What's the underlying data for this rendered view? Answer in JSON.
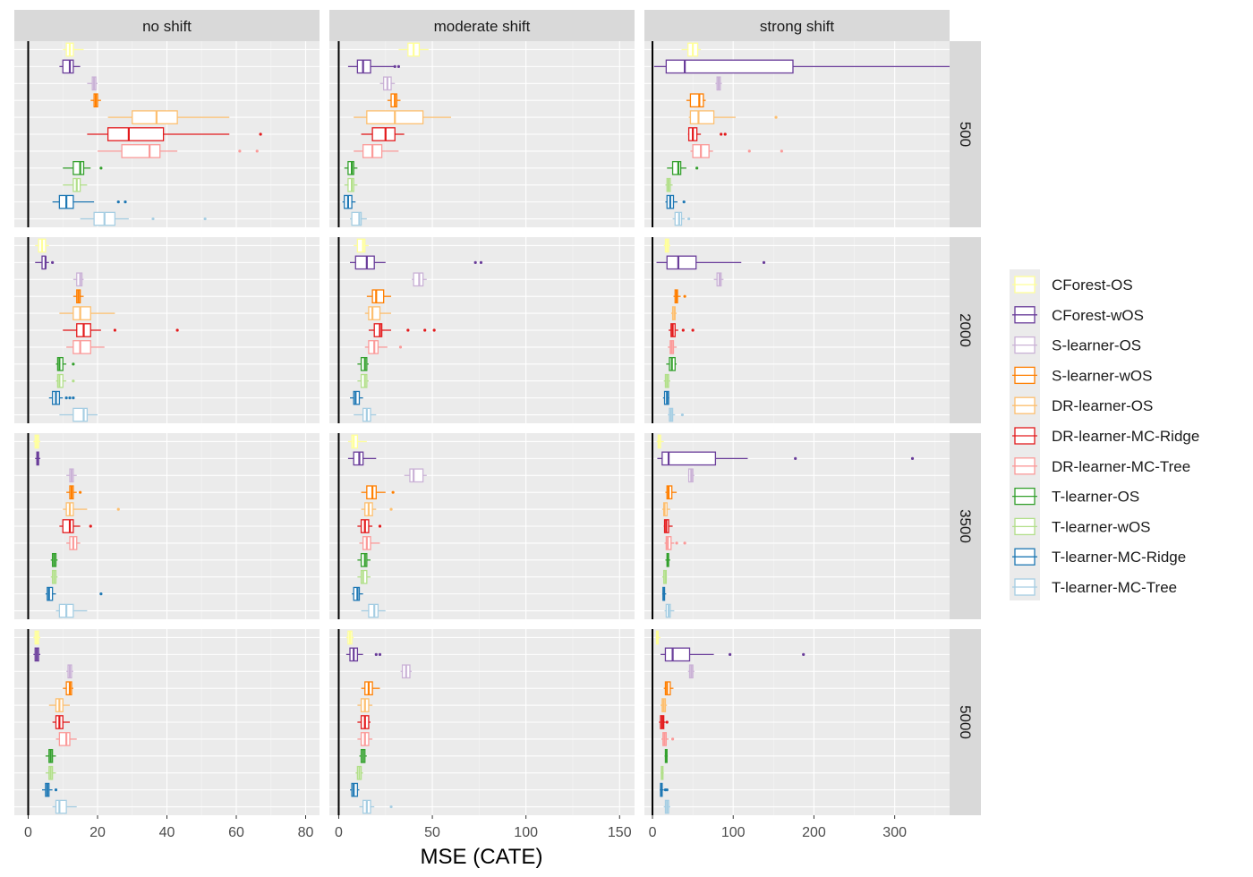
{
  "chart_data": {
    "type": "boxplot",
    "xlabel": "MSE (CATE)",
    "col_facets": [
      "no shift",
      "moderate shift",
      "strong shift"
    ],
    "row_facets": [
      "500",
      "2000",
      "3500",
      "5000"
    ],
    "x_ticks": [
      [
        0,
        20,
        40,
        60,
        80
      ],
      [
        0,
        50,
        100,
        150
      ],
      [
        0,
        100,
        200,
        300
      ]
    ],
    "xlim": [
      [
        -4,
        84
      ],
      [
        -5,
        158
      ],
      [
        -10,
        368
      ]
    ],
    "legend_position": "right",
    "methods": [
      {
        "name": "CForest-OS",
        "color": "#FFFF99"
      },
      {
        "name": "CForest-wOS",
        "color": "#6A3D9A"
      },
      {
        "name": "S-learner-OS",
        "color": "#CAB2D6"
      },
      {
        "name": "S-learner-wOS",
        "color": "#FF7F00"
      },
      {
        "name": "DR-learner-OS",
        "color": "#FDBF6F"
      },
      {
        "name": "DR-learner-MC-Ridge",
        "color": "#E31A1C"
      },
      {
        "name": "DR-learner-MC-Tree",
        "color": "#FB9A99"
      },
      {
        "name": "T-learner-OS",
        "color": "#33A02C"
      },
      {
        "name": "T-learner-wOS",
        "color": "#B2DF8A"
      },
      {
        "name": "T-learner-MC-Ridge",
        "color": "#1F78B4"
      },
      {
        "name": "T-learner-MC-Tree",
        "color": "#A6CEE3"
      }
    ],
    "boxes": [
      [
        [
          [
            10,
            11,
            12,
            13,
            16,
            []
          ],
          [
            9,
            10,
            12,
            13,
            15,
            []
          ],
          [
            17,
            18.5,
            19,
            19.5,
            20,
            []
          ],
          [
            18,
            19,
            19.5,
            20,
            21,
            []
          ],
          [
            23,
            30,
            37,
            43,
            58,
            []
          ],
          [
            17,
            23,
            29,
            39,
            58,
            [
              67
            ]
          ],
          [
            20,
            27,
            35,
            38,
            43,
            [
              61,
              66
            ]
          ],
          [
            10,
            13,
            15,
            16,
            18,
            [
              21
            ]
          ],
          [
            10,
            13,
            14,
            15,
            17,
            []
          ],
          [
            7,
            9,
            11,
            13,
            19,
            [
              26,
              28
            ]
          ],
          [
            15,
            19,
            22,
            25,
            29,
            [
              36,
              51
            ]
          ]
        ],
        [
          [
            32,
            37,
            40,
            43,
            48,
            []
          ],
          [
            5,
            10,
            13,
            17,
            30,
            [
              30,
              32
            ]
          ],
          [
            22,
            24,
            26,
            28,
            30,
            []
          ],
          [
            26,
            28,
            30,
            31,
            33,
            []
          ],
          [
            8,
            15,
            30,
            45,
            60,
            []
          ],
          [
            12,
            18,
            25,
            30,
            35,
            []
          ],
          [
            8,
            13,
            18,
            23,
            32,
            []
          ],
          [
            3,
            5,
            7,
            8,
            10,
            []
          ],
          [
            3,
            5,
            7,
            8,
            10,
            []
          ],
          [
            2,
            3,
            5,
            7,
            9,
            []
          ],
          [
            6,
            7,
            11,
            12,
            15,
            []
          ]
        ],
        [
          [
            36,
            44,
            50,
            56,
            60,
            []
          ],
          [
            2,
            17,
            40,
            174,
            368,
            []
          ],
          [
            78,
            80,
            82,
            84,
            86,
            []
          ],
          [
            42,
            47,
            58,
            63,
            66,
            []
          ],
          [
            45,
            47,
            57,
            76,
            103,
            [
              153
            ]
          ],
          [
            44,
            45,
            50,
            55,
            60,
            [
              85,
              90
            ]
          ],
          [
            47,
            50,
            60,
            70,
            75,
            [
              120,
              160
            ]
          ],
          [
            18,
            25,
            32,
            35,
            42,
            [
              55
            ]
          ],
          [
            16,
            18,
            20,
            22,
            25,
            []
          ],
          [
            16,
            18,
            22,
            26,
            31,
            [
              39
            ]
          ],
          [
            25,
            28,
            33,
            36,
            40,
            [
              45
            ]
          ]
        ]
      ],
      [
        [
          [
            2,
            3,
            4,
            5,
            6,
            []
          ],
          [
            2,
            4,
            5,
            5,
            6,
            [
              7
            ]
          ],
          [
            13,
            14,
            15,
            15.5,
            16,
            []
          ],
          [
            13,
            14,
            14.5,
            15,
            16,
            []
          ],
          [
            9,
            13,
            15,
            18,
            25,
            []
          ],
          [
            10,
            14,
            16,
            18,
            21,
            [
              25,
              43
            ]
          ],
          [
            11,
            13,
            15,
            18,
            22,
            []
          ],
          [
            8,
            8.5,
            9,
            10,
            11,
            [
              13
            ]
          ],
          [
            8,
            8.5,
            9,
            10,
            11,
            [
              13
            ]
          ],
          [
            6,
            7,
            8,
            9,
            10,
            [
              11,
              12,
              13
            ]
          ],
          [
            9,
            13,
            16,
            17,
            20,
            []
          ]
        ],
        [
          [
            8,
            10,
            13,
            14,
            16,
            []
          ],
          [
            6,
            9,
            15,
            19,
            25,
            [
              73,
              76
            ]
          ],
          [
            39,
            40,
            43,
            45,
            47,
            []
          ],
          [
            15,
            18,
            20,
            24,
            28,
            []
          ],
          [
            14,
            16,
            18,
            22,
            28,
            []
          ],
          [
            16,
            19,
            22,
            23,
            28,
            [
              37,
              46,
              51
            ]
          ],
          [
            14,
            16,
            19,
            21,
            26,
            [
              33
            ]
          ],
          [
            10,
            12,
            14,
            15,
            16,
            []
          ],
          [
            10,
            12,
            14,
            15,
            16,
            []
          ],
          [
            6,
            8,
            9,
            11,
            13,
            []
          ],
          [
            8,
            13,
            15,
            17,
            20,
            []
          ]
        ],
        [
          [
            14,
            16,
            18,
            20,
            22,
            []
          ],
          [
            5,
            18,
            32,
            54,
            110,
            [
              138
            ]
          ],
          [
            76,
            80,
            83,
            85,
            88,
            []
          ],
          [
            26,
            28,
            30,
            31,
            35,
            [
              40
            ]
          ],
          [
            23,
            25,
            27,
            28,
            30,
            []
          ],
          [
            20,
            23,
            25,
            28,
            32,
            [
              38,
              50
            ]
          ],
          [
            19,
            22,
            24,
            26,
            30,
            []
          ],
          [
            17,
            21,
            24,
            28,
            30,
            []
          ],
          [
            14,
            16,
            18,
            20,
            22,
            []
          ],
          [
            13,
            15,
            18,
            20,
            21,
            []
          ],
          [
            19,
            21,
            23,
            25,
            28,
            [
              37
            ]
          ]
        ]
      ],
      [
        [
          [
            1.5,
            2,
            2.5,
            3,
            3.5,
            []
          ],
          [
            2,
            2.5,
            2.7,
            3,
            3.5,
            []
          ],
          [
            11,
            12,
            12.5,
            13,
            14,
            []
          ],
          [
            11,
            12,
            12.5,
            13,
            14,
            [
              15
            ]
          ],
          [
            10,
            11,
            12,
            13,
            17,
            [
              26
            ]
          ],
          [
            9,
            10,
            12,
            13,
            15,
            [
              18
            ]
          ],
          [
            11,
            12,
            13,
            14,
            15,
            []
          ],
          [
            6.5,
            7,
            7.5,
            8,
            8.5,
            []
          ],
          [
            6.5,
            7,
            7.5,
            8,
            8.5,
            []
          ],
          [
            5,
            5.5,
            6,
            7,
            8,
            [
              21
            ]
          ],
          [
            8,
            9,
            11,
            13,
            17,
            []
          ]
        ],
        [
          [
            5,
            7,
            8,
            10,
            15,
            []
          ],
          [
            5,
            8,
            11,
            13,
            20,
            []
          ],
          [
            35,
            38,
            40,
            45,
            47,
            []
          ],
          [
            12,
            15,
            18,
            20,
            25,
            [
              29
            ]
          ],
          [
            12,
            14,
            16,
            18,
            20,
            [
              28
            ]
          ],
          [
            10,
            12,
            14,
            16,
            18,
            [
              22
            ]
          ],
          [
            11,
            13,
            15,
            17,
            22,
            []
          ],
          [
            10,
            12,
            14,
            15,
            17,
            []
          ],
          [
            10,
            12,
            13,
            15,
            17,
            []
          ],
          [
            7,
            8,
            10,
            11,
            13,
            []
          ],
          [
            12,
            16,
            19,
            21,
            25,
            []
          ]
        ],
        [
          [
            5,
            7,
            8,
            10,
            14,
            []
          ],
          [
            6,
            12,
            20,
            78,
            118,
            [
              177,
              322
            ]
          ],
          [
            44,
            45,
            48,
            50,
            52,
            []
          ],
          [
            16,
            18,
            20,
            24,
            30,
            []
          ],
          [
            12,
            14,
            15,
            18,
            22,
            []
          ],
          [
            14,
            15,
            17,
            20,
            25,
            []
          ],
          [
            15,
            17,
            19,
            23,
            27,
            [
              30,
              40
            ]
          ],
          [
            16,
            18,
            19,
            20,
            22,
            []
          ],
          [
            12,
            14,
            16,
            17,
            18,
            []
          ],
          [
            12,
            13,
            14,
            15,
            17,
            []
          ],
          [
            15,
            17,
            20,
            22,
            27,
            []
          ]
        ]
      ],
      [
        [
          [
            1.5,
            2,
            2.5,
            3,
            3.5,
            []
          ],
          [
            1.5,
            2,
            2.5,
            3,
            3.5,
            []
          ],
          [
            11,
            11.5,
            12,
            12.5,
            13,
            []
          ],
          [
            10,
            11,
            12,
            12.5,
            13,
            []
          ],
          [
            6,
            8,
            9,
            10,
            12,
            []
          ],
          [
            7,
            8,
            9,
            10,
            12,
            []
          ],
          [
            8,
            9,
            11,
            12,
            14,
            []
          ],
          [
            5,
            6,
            6.5,
            7,
            8,
            []
          ],
          [
            5,
            6,
            6.5,
            7,
            8,
            []
          ],
          [
            4,
            5,
            5.5,
            6,
            7,
            [
              8
            ]
          ],
          [
            7,
            8,
            9,
            11,
            14,
            []
          ]
        ],
        [
          [
            4,
            5,
            6,
            7,
            8,
            []
          ],
          [
            4,
            6,
            8,
            10,
            13,
            [
              20,
              22
            ]
          ],
          [
            33,
            34,
            36,
            38,
            39,
            []
          ],
          [
            12,
            14,
            16,
            18,
            22,
            []
          ],
          [
            10,
            12,
            14,
            16,
            18,
            []
          ],
          [
            10,
            12,
            14,
            16,
            17,
            []
          ],
          [
            10,
            12,
            14,
            16,
            18,
            []
          ],
          [
            11,
            12,
            13,
            14,
            15,
            []
          ],
          [
            9,
            10,
            11,
            12,
            13,
            []
          ],
          [
            6,
            7,
            8,
            10,
            11,
            []
          ],
          [
            11,
            13,
            15,
            17,
            19,
            [
              28
            ]
          ]
        ],
        [
          [
            4,
            5,
            6,
            7,
            10,
            []
          ],
          [
            10,
            16,
            25,
            46,
            76,
            [
              96,
              187
            ]
          ],
          [
            44,
            46,
            48,
            50,
            52,
            []
          ],
          [
            14,
            16,
            18,
            22,
            26,
            []
          ],
          [
            10,
            12,
            14,
            16,
            18,
            []
          ],
          [
            8,
            10,
            12,
            14,
            16,
            [
              18
            ]
          ],
          [
            11,
            13,
            15,
            17,
            20,
            [
              25
            ]
          ],
          [
            15,
            16,
            17,
            18,
            19,
            []
          ],
          [
            10,
            11,
            12,
            13,
            14,
            []
          ],
          [
            9,
            10,
            11,
            12,
            14,
            [
              16,
              18
            ]
          ],
          [
            14,
            16,
            18,
            20,
            22,
            []
          ]
        ]
      ]
    ]
  }
}
